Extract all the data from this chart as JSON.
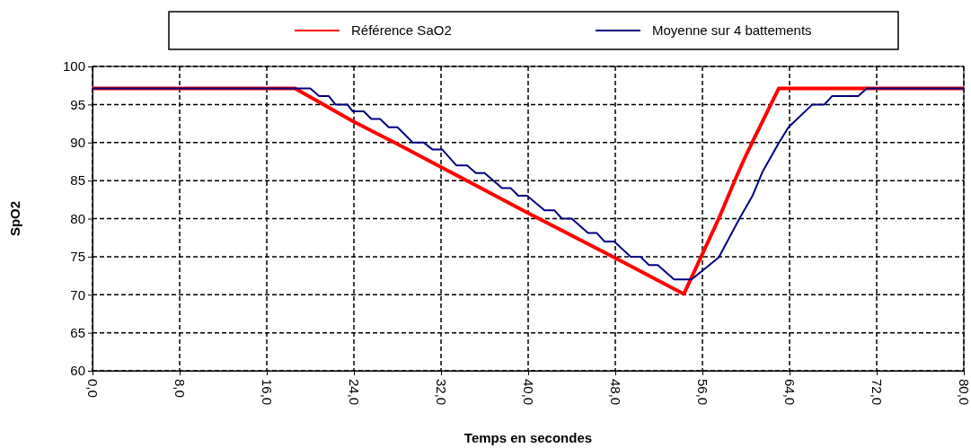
{
  "chart_data": {
    "type": "line",
    "xlabel": "Temps en secondes",
    "ylabel": "SpO2",
    "xlim": [
      0,
      80
    ],
    "ylim": [
      60,
      100
    ],
    "xticks": [
      {
        "value": 0,
        "label": "0,0"
      },
      {
        "value": 8,
        "label": "8,0"
      },
      {
        "value": 16,
        "label": "16,0"
      },
      {
        "value": 24,
        "label": "24,0"
      },
      {
        "value": 32,
        "label": "32,0"
      },
      {
        "value": 40,
        "label": "40,0"
      },
      {
        "value": 48,
        "label": "48,0"
      },
      {
        "value": 56,
        "label": "56,0"
      },
      {
        "value": 64,
        "label": "64,0"
      },
      {
        "value": 72,
        "label": "72,0"
      },
      {
        "value": 80,
        "label": "80,0"
      }
    ],
    "yticks": [
      60,
      65,
      70,
      75,
      80,
      85,
      90,
      95,
      100
    ],
    "grid": true,
    "legend": "top",
    "line_style": "solid",
    "marker": "none",
    "series": [
      {
        "name": "Référence SaO2",
        "color": "#ff0000",
        "x": [
          0,
          18.6,
          23.9,
          28,
          32.1,
          39.9,
          47.9,
          54.3,
          57.5,
          59,
          59.8,
          60.6,
          63,
          80
        ],
        "values": [
          97.1,
          97.1,
          92.8,
          89.8,
          86.7,
          80.8,
          74.9,
          70.1,
          80,
          85.1,
          87.7,
          90.1,
          97.1,
          97.1
        ]
      },
      {
        "name": "Moyenne sur 4 battements",
        "color": "#000080",
        "x": [
          0,
          20,
          20.8,
          21.7,
          22.3,
          23.4,
          23.9,
          24.9,
          25.6,
          26.4,
          27.2,
          28,
          29.4,
          30.4,
          31.2,
          32.1,
          33.4,
          34.4,
          35.2,
          36,
          37.6,
          38.4,
          39.1,
          39.9,
          41.5,
          42.4,
          43.1,
          44,
          45.5,
          46.3,
          47,
          47.9,
          49.4,
          50.3,
          51.1,
          51.9,
          53.4,
          55,
          57.5,
          59.4,
          60.6,
          61.5,
          63,
          63.9,
          66.1,
          67.2,
          67.9,
          70.3,
          71.1,
          80
        ],
        "values": [
          97.1,
          97.1,
          96.1,
          96.1,
          95,
          95,
          94.1,
          94.1,
          93.1,
          93.1,
          92,
          92,
          90,
          90,
          89.1,
          89.1,
          87,
          87,
          86,
          86,
          84,
          84,
          83,
          83,
          81.1,
          81.1,
          80,
          80,
          78.1,
          78.1,
          77,
          77,
          75,
          75,
          73.9,
          73.9,
          72,
          72,
          74.9,
          80,
          83,
          86.1,
          89.9,
          92,
          95,
          95,
          96.1,
          96.1,
          97.1,
          97.1
        ]
      }
    ]
  }
}
